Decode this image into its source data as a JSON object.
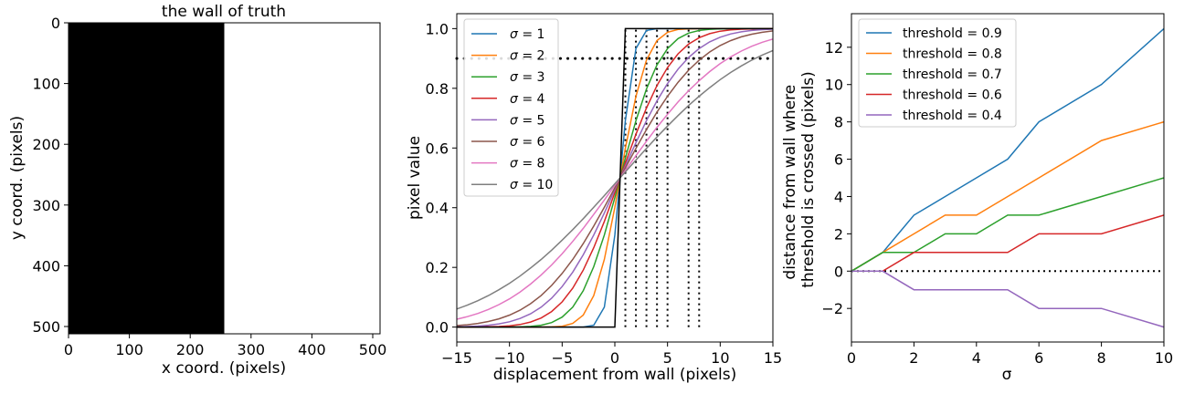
{
  "chart_data": [
    {
      "type": "heatmap",
      "title": "the wall of truth",
      "xlabel": "x coord. (pixels)",
      "ylabel": "y coord. (pixels)",
      "xlim": [
        0,
        512
      ],
      "ylim": [
        512,
        0
      ],
      "xticks": [
        0,
        100,
        200,
        300,
        400,
        500
      ],
      "yticks": [
        0,
        100,
        200,
        300,
        400,
        500
      ],
      "regions": [
        {
          "x_from": 0,
          "x_to": 256,
          "value": 0,
          "color": "#000000"
        },
        {
          "x_from": 256,
          "x_to": 512,
          "value": 1,
          "color": "#ffffff"
        }
      ]
    },
    {
      "type": "line",
      "title": "",
      "xlabel": "displacement from wall (pixels)",
      "ylabel": "pixel value",
      "xlim": [
        -15,
        15
      ],
      "ylim": [
        -0.05,
        1.05
      ],
      "xticks": [
        -15,
        -10,
        -5,
        0,
        5,
        10,
        15
      ],
      "yticks": [
        0.0,
        0.2,
        0.4,
        0.6,
        0.8,
        1.0
      ],
      "legend": "top-left",
      "sigmas": [
        1,
        2,
        3,
        4,
        5,
        6,
        8,
        10
      ],
      "series": [
        {
          "name": "σ = 1",
          "label_main": "σ",
          "label_rest": " = 1",
          "sigma": 1,
          "color": "#1f77b4"
        },
        {
          "name": "σ = 2",
          "label_main": "σ",
          "label_rest": " = 2",
          "sigma": 2,
          "color": "#ff7f0e"
        },
        {
          "name": "σ = 3",
          "label_main": "σ",
          "label_rest": " = 3",
          "sigma": 3,
          "color": "#2ca02c"
        },
        {
          "name": "σ = 4",
          "label_main": "σ",
          "label_rest": " = 4",
          "sigma": 4,
          "color": "#d62728"
        },
        {
          "name": "σ = 5",
          "label_main": "σ",
          "label_rest": " = 5",
          "sigma": 5,
          "color": "#9467bd"
        },
        {
          "name": "σ = 6",
          "label_main": "σ",
          "label_rest": " = 6",
          "sigma": 6,
          "color": "#8c564b"
        },
        {
          "name": "σ = 8",
          "label_main": "σ",
          "label_rest": " = 8",
          "sigma": 8,
          "color": "#e377c2"
        },
        {
          "name": "σ = 10",
          "label_main": "σ",
          "label_rest": " = 10",
          "sigma": 10,
          "color": "#7f7f7f"
        }
      ],
      "step_line": {
        "x": [
          -15,
          0,
          1,
          15
        ],
        "y": [
          0,
          0,
          1,
          1
        ],
        "color": "#000000"
      },
      "threshold_line": {
        "y": 0.9,
        "color": "#000000",
        "style": "dotted"
      },
      "crossing_lines": {
        "x": [
          1,
          2,
          3,
          4,
          5,
          7,
          8
        ],
        "y_from": 0,
        "y_to": 1,
        "color": "#000000",
        "style": "dotted"
      }
    },
    {
      "type": "line",
      "title": "",
      "xlabel": "σ",
      "ylabel": "distance from wall where threshold is crossed (pixels)",
      "ylabel_lines": [
        "distance from wall where",
        "threshold is crossed (pixels)"
      ],
      "xlim": [
        0,
        10
      ],
      "ylim": [
        -3.8,
        13.8
      ],
      "xticks": [
        0,
        2,
        4,
        6,
        8,
        10
      ],
      "yticks": [
        -2,
        0,
        2,
        4,
        6,
        8,
        10,
        12
      ],
      "legend": "top-left",
      "x": [
        0,
        1,
        2,
        3,
        4,
        5,
        6,
        8,
        10
      ],
      "series": [
        {
          "name": "threshold = 0.9",
          "color": "#1f77b4",
          "values": [
            0,
            1,
            3,
            4,
            5,
            6,
            8,
            10,
            13
          ]
        },
        {
          "name": "threshold = 0.8",
          "color": "#ff7f0e",
          "values": [
            0,
            1,
            2,
            3,
            3,
            4,
            5,
            7,
            8
          ]
        },
        {
          "name": "threshold = 0.7",
          "color": "#2ca02c",
          "values": [
            0,
            1,
            1,
            2,
            2,
            3,
            3,
            4,
            5
          ]
        },
        {
          "name": "threshold = 0.6",
          "color": "#d62728",
          "values": [
            0,
            0,
            1,
            1,
            1,
            1,
            2,
            2,
            3
          ]
        },
        {
          "name": "threshold = 0.4",
          "color": "#9467bd",
          "values": [
            0,
            0,
            -1,
            -1,
            -1,
            -1,
            -2,
            -2,
            -3
          ]
        }
      ],
      "zero_line": {
        "y": 0,
        "color": "#000000",
        "style": "dotted"
      }
    }
  ]
}
